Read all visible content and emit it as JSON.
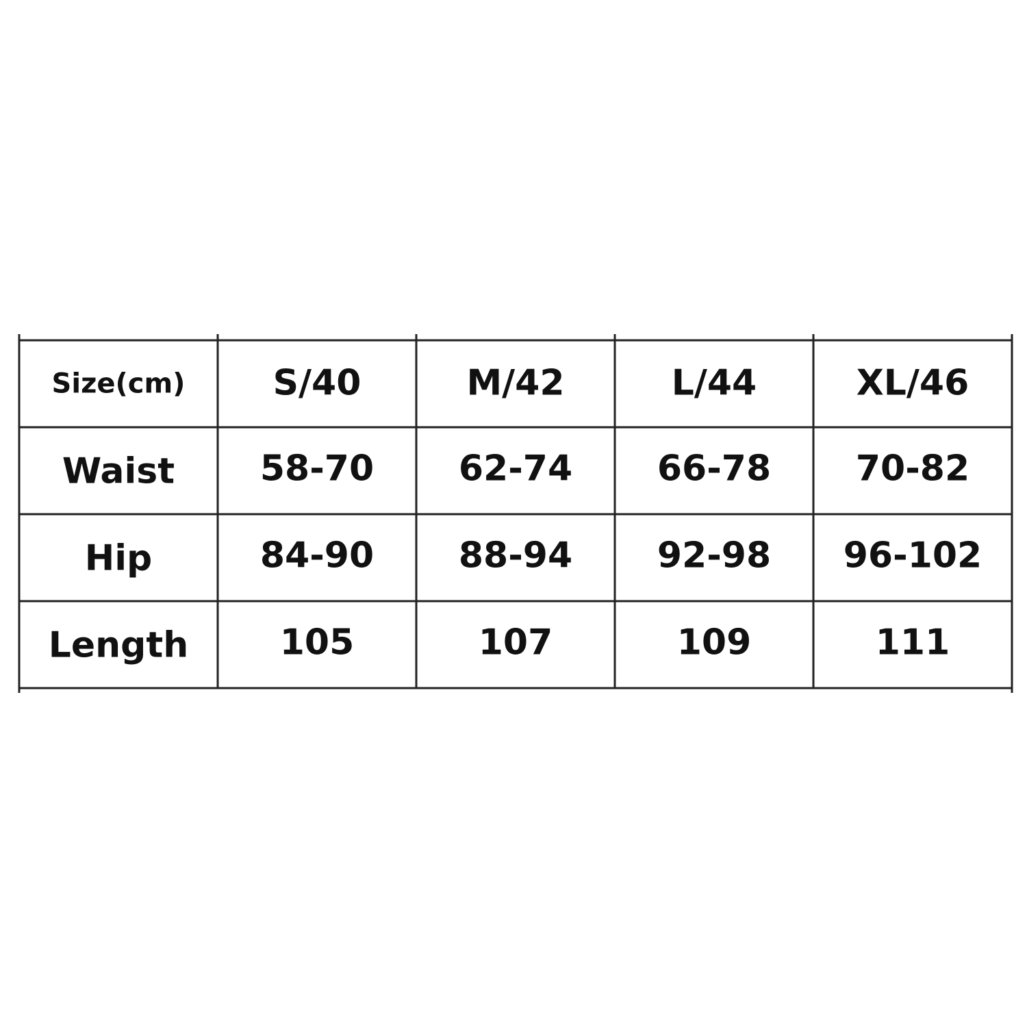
{
  "table": {
    "header": [
      "Size(cm)",
      "S/40",
      "M/42",
      "L/44",
      "XL/46"
    ],
    "rows": [
      [
        "Waist",
        "58-70",
        "62-74",
        "66-78",
        "70-82"
      ],
      [
        "Hip",
        "84-90",
        "88-94",
        "92-98",
        "96-102"
      ],
      [
        "Length",
        "105",
        "107",
        "109",
        "111"
      ]
    ]
  }
}
